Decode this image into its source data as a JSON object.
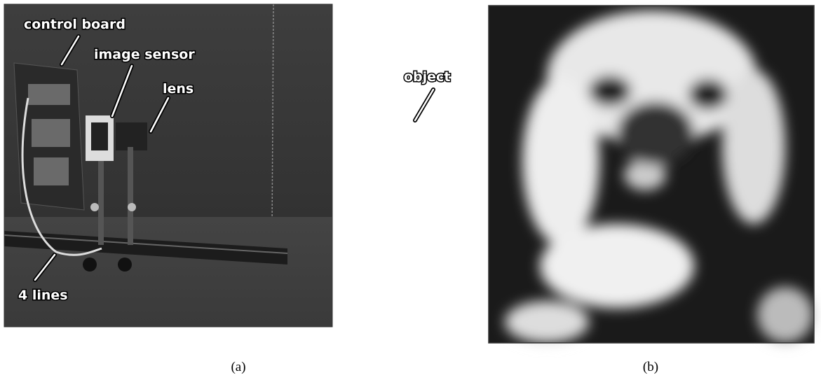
{
  "panels": [
    {
      "caption": "(a)",
      "annotations": [
        "control board",
        "image sensor",
        "lens",
        "object",
        "4 lines"
      ]
    },
    {
      "caption": "(b)"
    }
  ]
}
